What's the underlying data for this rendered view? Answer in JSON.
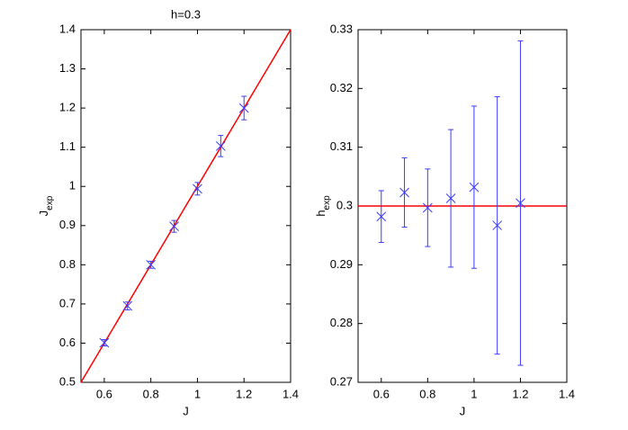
{
  "chart_data": [
    {
      "type": "errorbar",
      "title": "h=0.3",
      "xlabel": "J",
      "ylabel": {
        "text": "J",
        "subscript": "exp"
      },
      "xlim": [
        0.5,
        1.4
      ],
      "xticks": [
        0.6,
        0.8,
        1,
        1.2,
        1.4
      ],
      "ylim": [
        0.5,
        1.4
      ],
      "yticks": [
        0.5,
        0.6,
        0.7,
        0.8,
        0.9,
        1,
        1.1,
        1.2,
        1.3,
        1.4
      ],
      "series": [
        {
          "color": "#3b3bff",
          "x": [
            0.6,
            0.7,
            0.8,
            0.9,
            1.0,
            1.1,
            1.2
          ],
          "values": [
            0.601,
            0.695,
            0.8,
            0.898,
            0.994,
            1.103,
            1.2
          ],
          "errors": [
            0.008,
            0.01,
            0.009,
            0.015,
            0.016,
            0.027,
            0.03
          ]
        }
      ],
      "reference_line": {
        "color": "#ff0000",
        "x": [
          0.5,
          1.4
        ],
        "y": [
          0.5,
          1.4
        ]
      }
    },
    {
      "type": "errorbar",
      "xlabel": "J",
      "ylabel": {
        "text": "h",
        "subscript": "exp"
      },
      "xlim": [
        0.5,
        1.4
      ],
      "xticks": [
        0.6,
        0.8,
        1,
        1.2,
        1.4
      ],
      "ylim": [
        0.27,
        0.33
      ],
      "yticks": [
        0.27,
        0.28,
        0.29,
        0.3,
        0.31,
        0.32,
        0.33
      ],
      "series": [
        {
          "color": "#3b3bff",
          "x": [
            0.6,
            0.7,
            0.8,
            0.9,
            1.0,
            1.1,
            1.2
          ],
          "values": [
            0.2982,
            0.3023,
            0.2997,
            0.3013,
            0.3032,
            0.2967,
            0.3005
          ],
          "errors": [
            0.0044,
            0.0059,
            0.0066,
            0.0117,
            0.0138,
            0.0219,
            0.0276
          ]
        }
      ],
      "reference_line": {
        "color": "#ff0000",
        "x": [
          0.5,
          1.4
        ],
        "y": [
          0.3,
          0.3
        ]
      }
    }
  ]
}
